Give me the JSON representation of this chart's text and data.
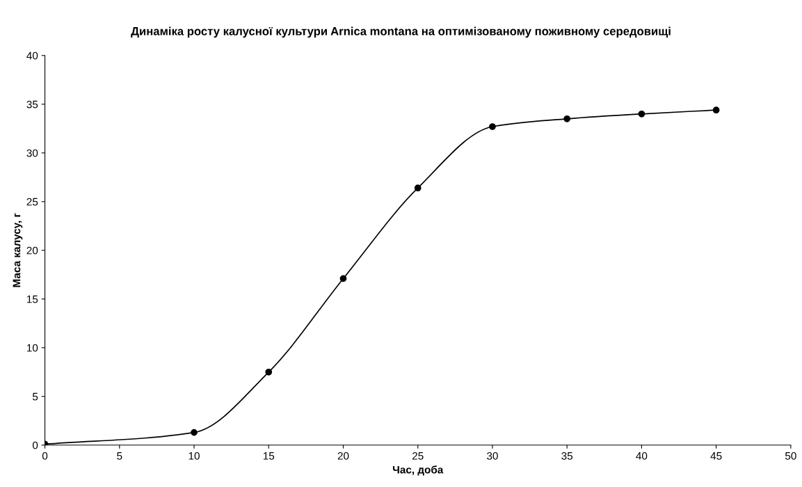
{
  "chart_data": {
    "type": "line",
    "title": "Динаміка росту калусної культури Arnica montana на оптимізованому поживному середовищі",
    "xlabel": "Час, доба",
    "ylabel": "Маса калусу, г",
    "x": [
      0,
      10,
      15,
      20,
      25,
      30,
      35,
      40,
      45
    ],
    "series": [
      {
        "color": "#000000",
        "values": [
          0.1,
          1.3,
          7.5,
          17.1,
          26.4,
          32.7,
          33.5,
          34.0,
          34.4
        ]
      }
    ],
    "xlim": [
      0,
      50
    ],
    "xticks": [
      0,
      5,
      10,
      15,
      20,
      25,
      30,
      35,
      40,
      45,
      50
    ],
    "ylim": [
      0,
      40
    ],
    "yticks": [
      0,
      5,
      10,
      15,
      20,
      25,
      30,
      35,
      40
    ],
    "grid": false,
    "legend": false,
    "marker": "circle",
    "line_style": "solid"
  }
}
